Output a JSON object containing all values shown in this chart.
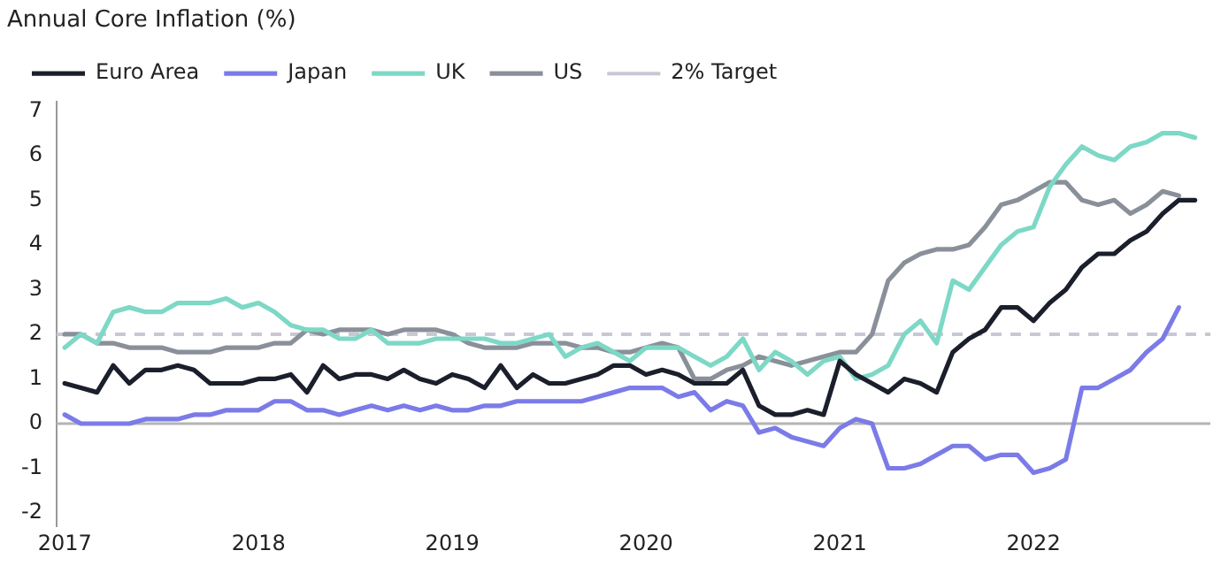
{
  "chart_data": {
    "type": "line",
    "title": "Annual Core Inflation (%)",
    "x": [
      "2017-01",
      "2017-02",
      "2017-03",
      "2017-04",
      "2017-05",
      "2017-06",
      "2017-07",
      "2017-08",
      "2017-09",
      "2017-10",
      "2017-11",
      "2017-12",
      "2018-01",
      "2018-02",
      "2018-03",
      "2018-04",
      "2018-05",
      "2018-06",
      "2018-07",
      "2018-08",
      "2018-09",
      "2018-10",
      "2018-11",
      "2018-12",
      "2019-01",
      "2019-02",
      "2019-03",
      "2019-04",
      "2019-05",
      "2019-06",
      "2019-07",
      "2019-08",
      "2019-09",
      "2019-10",
      "2019-11",
      "2019-12",
      "2020-01",
      "2020-02",
      "2020-03",
      "2020-04",
      "2020-05",
      "2020-06",
      "2020-07",
      "2020-08",
      "2020-09",
      "2020-10",
      "2020-11",
      "2020-12",
      "2021-01",
      "2021-02",
      "2021-03",
      "2021-04",
      "2021-05",
      "2021-06",
      "2021-07",
      "2021-08",
      "2021-09",
      "2021-10",
      "2021-11",
      "2021-12",
      "2022-01",
      "2022-02",
      "2022-03",
      "2022-04",
      "2022-05",
      "2022-06",
      "2022-07",
      "2022-08",
      "2022-09",
      "2022-10",
      "2022-11"
    ],
    "series": [
      {
        "name": "Euro Area",
        "color": "#1a1f2b",
        "values": [
          0.9,
          0.8,
          0.7,
          1.3,
          0.9,
          1.2,
          1.2,
          1.3,
          1.2,
          0.9,
          0.9,
          0.9,
          1.0,
          1.0,
          1.1,
          0.7,
          1.3,
          1.0,
          1.1,
          1.1,
          1.0,
          1.2,
          1.0,
          0.9,
          1.1,
          1.0,
          0.8,
          1.3,
          0.8,
          1.1,
          0.9,
          0.9,
          1.0,
          1.1,
          1.3,
          1.3,
          1.1,
          1.2,
          1.1,
          0.9,
          0.9,
          0.9,
          1.2,
          0.4,
          0.2,
          0.2,
          0.3,
          0.2,
          1.4,
          1.1,
          0.9,
          0.7,
          1.0,
          0.9,
          0.7,
          1.6,
          1.9,
          2.1,
          2.6,
          2.6,
          2.3,
          2.7,
          3.0,
          3.5,
          3.8,
          3.8,
          4.1,
          4.3,
          4.7,
          5.0,
          5.0
        ]
      },
      {
        "name": "Japan",
        "color": "#7b7be8",
        "values": [
          0.2,
          0.0,
          0.0,
          0.0,
          0.0,
          0.1,
          0.1,
          0.1,
          0.2,
          0.2,
          0.3,
          0.3,
          0.3,
          0.5,
          0.5,
          0.3,
          0.3,
          0.2,
          0.3,
          0.4,
          0.3,
          0.4,
          0.3,
          0.4,
          0.3,
          0.3,
          0.4,
          0.4,
          0.5,
          0.5,
          0.5,
          0.5,
          0.5,
          0.6,
          0.7,
          0.8,
          0.8,
          0.8,
          0.6,
          0.7,
          0.3,
          0.5,
          0.4,
          -0.2,
          -0.1,
          -0.3,
          -0.4,
          -0.5,
          -0.1,
          0.1,
          0.0,
          -1.0,
          -1.0,
          -0.9,
          -0.7,
          -0.5,
          -0.5,
          -0.8,
          -0.7,
          -0.7,
          -1.1,
          -1.0,
          -0.8,
          0.8,
          0.8,
          1.0,
          1.2,
          1.6,
          1.9,
          2.6,
          null
        ]
      },
      {
        "name": "UK",
        "color": "#7dd8c6",
        "values": [
          1.7,
          2.0,
          1.8,
          2.5,
          2.6,
          2.5,
          2.5,
          2.7,
          2.7,
          2.7,
          2.8,
          2.6,
          2.7,
          2.5,
          2.2,
          2.1,
          2.1,
          1.9,
          1.9,
          2.1,
          1.8,
          1.8,
          1.8,
          1.9,
          1.9,
          1.9,
          1.9,
          1.8,
          1.8,
          1.9,
          2.0,
          1.5,
          1.7,
          1.8,
          1.6,
          1.4,
          1.7,
          1.7,
          1.7,
          1.5,
          1.3,
          1.5,
          1.9,
          1.2,
          1.6,
          1.4,
          1.1,
          1.4,
          1.5,
          1.0,
          1.1,
          1.3,
          2.0,
          2.3,
          1.8,
          3.2,
          3.0,
          3.5,
          4.0,
          4.3,
          4.4,
          5.3,
          5.8,
          6.2,
          6.0,
          5.9,
          6.2,
          6.3,
          6.5,
          6.5,
          6.4
        ]
      },
      {
        "name": "US",
        "color": "#8a9099",
        "values": [
          2.0,
          2.0,
          1.8,
          1.8,
          1.7,
          1.7,
          1.7,
          1.6,
          1.6,
          1.6,
          1.7,
          1.7,
          1.7,
          1.8,
          1.8,
          2.1,
          2.0,
          2.1,
          2.1,
          2.1,
          2.0,
          2.1,
          2.1,
          2.1,
          2.0,
          1.8,
          1.7,
          1.7,
          1.7,
          1.8,
          1.8,
          1.8,
          1.7,
          1.7,
          1.6,
          1.6,
          1.7,
          1.8,
          1.7,
          1.0,
          1.0,
          1.2,
          1.3,
          1.5,
          1.4,
          1.3,
          1.4,
          1.5,
          1.6,
          1.6,
          2.0,
          3.2,
          3.6,
          3.8,
          3.9,
          3.9,
          4.0,
          4.4,
          4.9,
          5.0,
          5.2,
          5.4,
          5.4,
          5.0,
          4.9,
          5.0,
          4.7,
          4.9,
          5.2,
          5.1,
          null
        ]
      }
    ],
    "ref_lines": [
      {
        "axis": "y",
        "value": 0,
        "color": "#b4b4b4",
        "line_style": "solid"
      },
      {
        "axis": "y",
        "value": 2,
        "label": "2% Target",
        "color": "#c8c8d4",
        "line_style": "dashed"
      }
    ],
    "xlim": [
      "2016-12-16",
      "2022-11-30"
    ],
    "xticks": [
      "2017",
      "2018",
      "2019",
      "2020",
      "2021",
      "2022"
    ],
    "ylim": [
      -2.3,
      7.2
    ],
    "yticks": [
      -2,
      -1,
      0,
      1,
      2,
      3,
      4,
      5,
      6,
      7
    ],
    "grid": false,
    "legend": "top",
    "marker": "none",
    "line_style": "solid"
  }
}
